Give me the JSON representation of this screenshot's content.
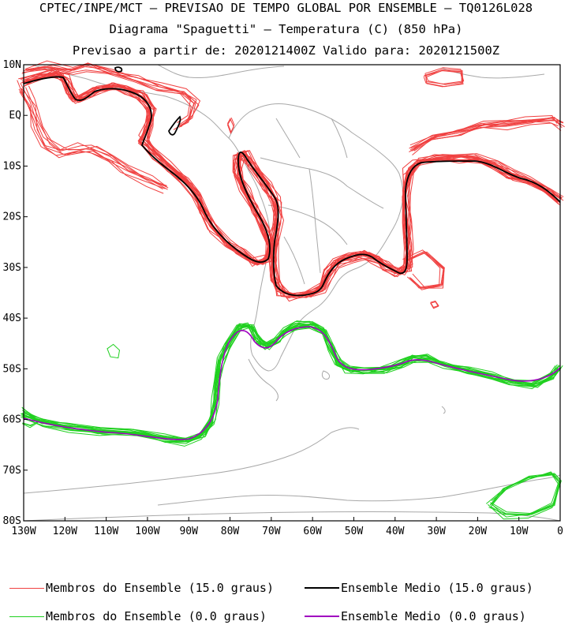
{
  "header": {
    "line1": "CPTEC/INPE/MCT – PREVISAO DE TEMPO GLOBAL POR ENSEMBLE – TQ0126L028",
    "line2": "Diagrama \"Spaguetti\" – Temperatura (C) (850 hPa)",
    "line3": "Previsao a partir de: 2020121400Z  Valido para: 2020121500Z"
  },
  "axes": {
    "lat_labels": [
      "10N",
      "EQ",
      "10S",
      "20S",
      "30S",
      "40S",
      "50S",
      "60S",
      "70S",
      "80S"
    ],
    "lon_labels": [
      "130W",
      "120W",
      "110W",
      "100W",
      "90W",
      "80W",
      "70W",
      "60W",
      "50W",
      "40W",
      "30W",
      "20W",
      "10W",
      "0"
    ]
  },
  "legend": [
    {
      "label": "Membros do Ensemble (15.0 graus)",
      "color": "#f04040"
    },
    {
      "label": "Ensemble Medio (15.0 graus)",
      "color": "#000000"
    },
    {
      "label": "Membros do Ensemble (0.0 graus)",
      "color": "#20d020"
    },
    {
      "label": "Ensemble Medio (0.0 graus)",
      "color": "#a000c0"
    }
  ],
  "colors": {
    "member_15": "#f04040",
    "mean_15": "#000000",
    "member_0": "#20d020",
    "mean_0": "#a000c0",
    "coast": "#a8a8a8"
  }
}
